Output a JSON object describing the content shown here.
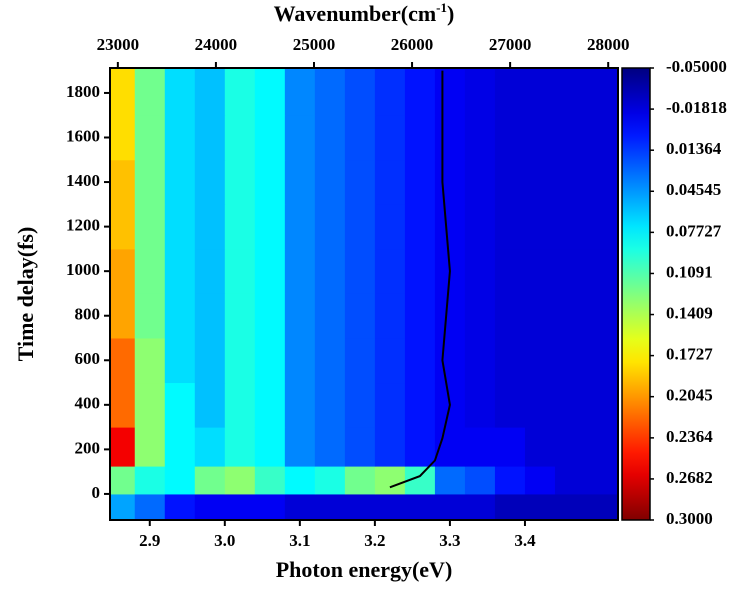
{
  "chart_data": {
    "type": "heatmap",
    "xlabel": "Photon energy(eV)",
    "ylabel": "Time delay(fs)",
    "x2label": [
      "Wavenumber(cm",
      "-1",
      ")"
    ],
    "xlim": [
      2.847,
      3.524
    ],
    "xticks": [
      2.9,
      {
        "value": 3,
        "label": "3.0"
      },
      3.1,
      3.2,
      3.3,
      3.4
    ],
    "x2lim": [
      22920,
      28100
    ],
    "x2ticks": [
      23000,
      24000,
      25000,
      26000,
      27000,
      28000
    ],
    "ylim": [
      -117,
      1912
    ],
    "yticks": [
      0,
      200,
      400,
      600,
      800,
      1000,
      1200,
      1400,
      1600,
      1800
    ],
    "colormap": "jet",
    "clim": [
      -0.05,
      0.3
    ],
    "cticks": [
      {
        "value": -0.05,
        "label": "-0.05000"
      },
      -0.01818,
      0.01364,
      0.04545,
      0.07727,
      0.1091,
      0.1409,
      0.1727,
      0.2045,
      0.2364,
      0.2682,
      {
        "value": 0.3,
        "label": "0.3000"
      }
    ],
    "x": [
      2.86,
      2.9,
      2.94,
      2.98,
      3.02,
      3.06,
      3.1,
      3.14,
      3.18,
      3.22,
      3.26,
      3.3,
      3.34,
      3.38,
      3.42,
      3.46
    ],
    "y": [
      -50,
      50,
      200,
      400,
      600,
      800,
      1000,
      1200,
      1400,
      1600,
      1800
    ],
    "z": [
      [
        0.05,
        0.03,
        0.0,
        -0.01,
        -0.01,
        -0.01,
        -0.02,
        -0.02,
        -0.02,
        -0.02,
        -0.02,
        -0.02,
        -0.02,
        -0.03,
        -0.03,
        -0.03
      ],
      [
        0.12,
        0.09,
        0.08,
        0.12,
        0.13,
        0.1,
        0.08,
        0.09,
        0.12,
        0.13,
        0.1,
        0.03,
        0.02,
        0.0,
        -0.01,
        -0.02
      ],
      [
        0.26,
        0.13,
        0.08,
        0.07,
        0.09,
        0.08,
        0.04,
        0.03,
        0.02,
        0.01,
        0.0,
        -0.01,
        -0.01,
        -0.01,
        -0.02,
        -0.02
      ],
      [
        0.22,
        0.13,
        0.08,
        0.06,
        0.09,
        0.08,
        0.04,
        0.03,
        0.02,
        0.01,
        0.0,
        -0.01,
        -0.015,
        -0.02,
        -0.02,
        -0.02
      ],
      [
        0.22,
        0.13,
        0.07,
        0.06,
        0.09,
        0.08,
        0.04,
        0.03,
        0.02,
        0.01,
        0.0,
        -0.01,
        -0.015,
        -0.02,
        -0.02,
        -0.02
      ],
      [
        0.2,
        0.12,
        0.07,
        0.06,
        0.09,
        0.08,
        0.04,
        0.03,
        0.02,
        0.01,
        0.0,
        -0.01,
        -0.015,
        -0.02,
        -0.02,
        -0.02
      ],
      [
        0.2,
        0.12,
        0.07,
        0.06,
        0.09,
        0.08,
        0.04,
        0.03,
        0.02,
        0.01,
        0.0,
        -0.01,
        -0.015,
        -0.02,
        -0.02,
        -0.02
      ],
      [
        0.19,
        0.12,
        0.07,
        0.06,
        0.09,
        0.08,
        0.04,
        0.03,
        0.02,
        0.01,
        0.0,
        -0.01,
        -0.015,
        -0.02,
        -0.02,
        -0.02
      ],
      [
        0.19,
        0.12,
        0.07,
        0.06,
        0.09,
        0.08,
        0.04,
        0.03,
        0.02,
        0.01,
        0.0,
        -0.01,
        -0.015,
        -0.02,
        -0.02,
        -0.02
      ],
      [
        0.18,
        0.12,
        0.07,
        0.06,
        0.09,
        0.08,
        0.04,
        0.03,
        0.02,
        0.01,
        0.0,
        -0.01,
        -0.015,
        -0.02,
        -0.02,
        -0.02
      ],
      [
        0.18,
        0.12,
        0.07,
        0.06,
        0.09,
        0.08,
        0.04,
        0.03,
        0.02,
        0.01,
        0.0,
        -0.01,
        -0.015,
        -0.02,
        -0.02,
        -0.02
      ]
    ],
    "contour": {
      "x": [
        3.22,
        3.26,
        3.28,
        3.29,
        3.3,
        3.29,
        3.3,
        3.29,
        3.29
      ],
      "y": [
        30,
        80,
        150,
        250,
        400,
        600,
        1000,
        1400,
        1900
      ]
    }
  }
}
